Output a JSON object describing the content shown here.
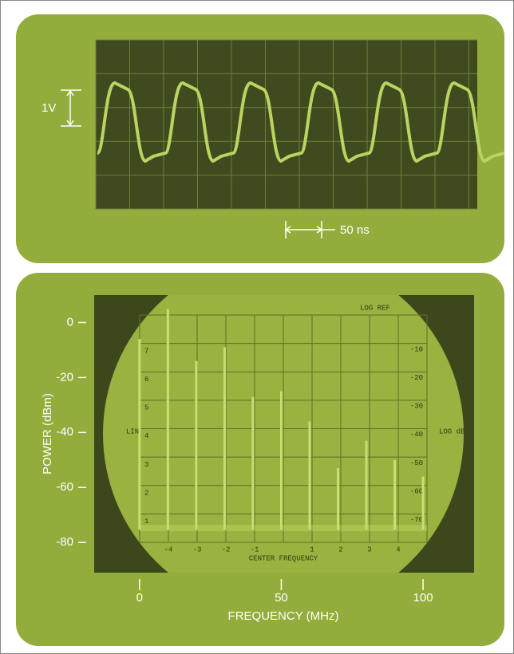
{
  "top_panel": {
    "volts_label": "1V",
    "time_label": "50 ns"
  },
  "chart_data": {
    "type": "bar",
    "x": [
      0,
      10,
      20,
      30,
      40,
      50,
      60,
      70,
      80,
      90,
      100
    ],
    "values": [
      -6,
      5,
      -14,
      -9,
      -27,
      -25,
      -36,
      -53,
      -43,
      -50,
      -56
    ],
    "color": "#c8df72",
    "xlim": [
      -16,
      118
    ],
    "ylim": [
      -91,
      10
    ],
    "xticks": [
      0,
      50,
      100
    ],
    "yticks": [
      0,
      -20,
      -40,
      -60,
      -80
    ],
    "xlabel": "FREQUENCY (MHz)",
    "ylabel": "POWER (dBm)",
    "screen_labels": {
      "top": "LOG REF",
      "left": "LIN",
      "right": "LOG dB",
      "bottom": "CENTER FREQUENCY",
      "lin_scale": [
        "7",
        "6",
        "5",
        "4",
        "3",
        "2",
        "1"
      ],
      "db_scale": [
        "-10",
        "-20",
        "-30",
        "-40",
        "-50",
        "-60",
        "-70"
      ],
      "div_scale": [
        "-4",
        "-3",
        "-2",
        "-1",
        "1",
        "2",
        "3",
        "4"
      ]
    }
  }
}
